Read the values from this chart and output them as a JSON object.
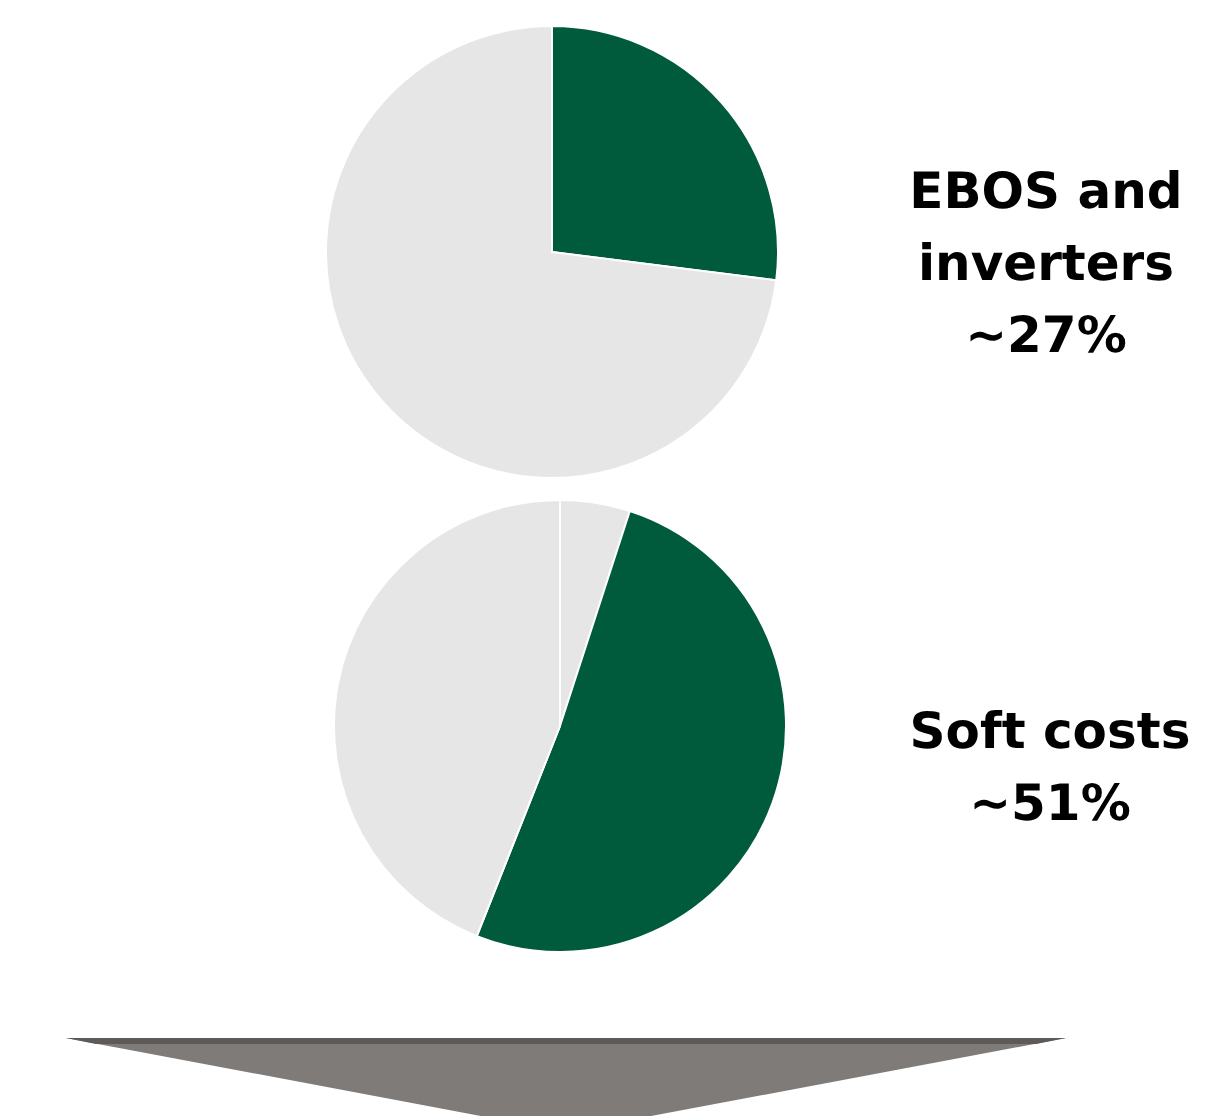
{
  "chart_data": [
    {
      "type": "pie",
      "categories": [
        "EBOS and inverters",
        null
      ],
      "values": [
        27,
        73
      ],
      "value_labels": [
        "~27%",
        null
      ],
      "colors": [
        "#005a3c",
        "#e6e6e6"
      ]
    },
    {
      "type": "pie",
      "categories": [
        null,
        "Soft costs",
        null
      ],
      "values": [
        5,
        51,
        44
      ],
      "value_labels": [
        null,
        "~51%",
        null
      ],
      "colors": [
        "#e6e6e6",
        "#005a3c",
        "#e6e6e6"
      ]
    }
  ]
}
